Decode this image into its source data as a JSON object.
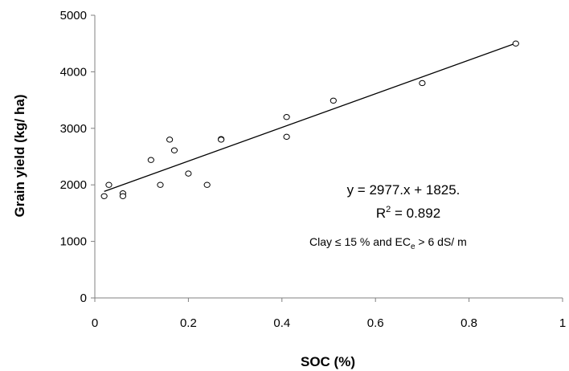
{
  "chart_data": {
    "type": "scatter",
    "xlabel": "SOC (%)",
    "ylabel": "Grain yield (kg/ ha)",
    "xlim": [
      0,
      1
    ],
    "ylim": [
      0,
      5000
    ],
    "xticks": [
      "0",
      "0.2",
      "0.4",
      "0.6",
      "0.8",
      "1"
    ],
    "yticks": [
      "0",
      "1000",
      "2000",
      "3000",
      "4000",
      "5000"
    ],
    "grid": false,
    "points": {
      "x": [
        0.02,
        0.03,
        0.06,
        0.06,
        0.12,
        0.14,
        0.16,
        0.17,
        0.2,
        0.24,
        0.27,
        0.27,
        0.41,
        0.41,
        0.51,
        0.7,
        0.9
      ],
      "y": [
        1800,
        2000,
        1850,
        1800,
        2440,
        2000,
        2800,
        2610,
        2200,
        2000,
        2810,
        2800,
        3200,
        2850,
        3490,
        3800,
        4500
      ]
    },
    "trendline": {
      "slope": 2977,
      "intercept": 1825,
      "x_range": [
        0.02,
        0.9
      ]
    },
    "annotations": {
      "equation": "y = 2977.x + 1825.",
      "r2_prefix": "R",
      "r2_sup": "2",
      "r2_suffix": " = 0.892",
      "condition_a": "Clay ≤ 15 %  and  EC",
      "condition_sub": "e",
      "condition_b": " > 6 dS/ m"
    }
  }
}
